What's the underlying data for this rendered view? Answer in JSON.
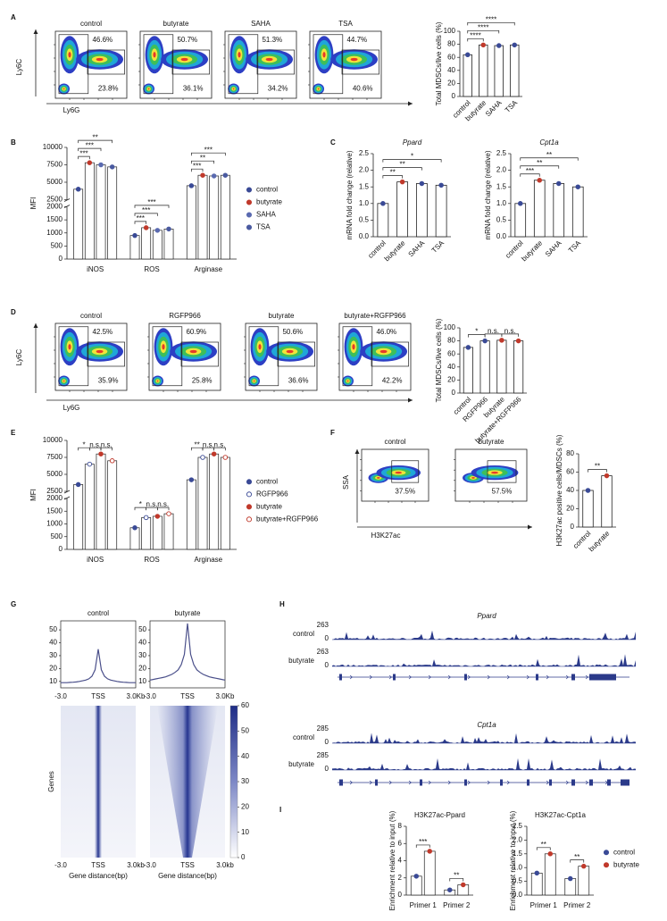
{
  "panel_labels": [
    "A",
    "B",
    "C",
    "D",
    "E",
    "F",
    "G",
    "H",
    "I"
  ],
  "flow": {
    "a": {
      "y_axis": "Ly6C",
      "x_axis": "Ly6G",
      "plots": [
        {
          "title": "control",
          "gates": [
            "46.6%",
            "23.8%"
          ]
        },
        {
          "title": "butyrate",
          "gates": [
            "50.7%",
            "36.1%"
          ]
        },
        {
          "title": "SAHA",
          "gates": [
            "51.3%",
            "34.2%"
          ]
        },
        {
          "title": "TSA",
          "gates": [
            "44.7%",
            "40.6%"
          ]
        }
      ]
    },
    "d": {
      "y_axis": "Ly6C",
      "x_axis": "Ly6G",
      "plots": [
        {
          "title": "control",
          "gates": [
            "42.5%",
            "35.9%"
          ]
        },
        {
          "title": "RGFP966",
          "gates": [
            "60.9%",
            "25.8%"
          ]
        },
        {
          "title": "butyrate",
          "gates": [
            "50.6%",
            "36.6%"
          ]
        },
        {
          "title": "butyrate+RGFP966",
          "gates": [
            "46.0%",
            "42.2%"
          ]
        }
      ]
    },
    "f": {
      "y_axis": "SSA",
      "x_axis": "H3K27ac",
      "plots": [
        {
          "title": "control",
          "gates": [
            "37.5%"
          ]
        },
        {
          "title": "butyrate",
          "gates": [
            "57.5%"
          ]
        }
      ]
    }
  },
  "chart_data": [
    {
      "type": "bar",
      "y_label": "Total MDSCs/live cells (%)",
      "categories": [
        "control",
        "butyrate",
        "SAHA",
        "TSA"
      ],
      "values": [
        64,
        79,
        78,
        79
      ],
      "colors": [
        "#3a4a96",
        "#c0392b",
        "#3a4a96",
        "#3a4a96"
      ],
      "ylim": [
        0,
        100
      ],
      "yticks": [
        0,
        20,
        40,
        60,
        80,
        100
      ],
      "significance": [
        {
          "pair": [
            0,
            1
          ],
          "label": "****"
        },
        {
          "pair": [
            0,
            2
          ],
          "label": "****"
        },
        {
          "pair": [
            0,
            3
          ],
          "label": "****"
        }
      ]
    },
    {
      "type": "bar",
      "y_label": "MFI",
      "categories": [
        "iNOS",
        "ROS",
        "Arginase"
      ],
      "series": [
        {
          "name": "control",
          "color": "#3a4a96",
          "values": [
            4000,
            900,
            4500
          ]
        },
        {
          "name": "butyrate",
          "color": "#c0392b",
          "values": [
            7800,
            1200,
            6000
          ]
        },
        {
          "name": "SAHA",
          "color": "#5a6ab0",
          "values": [
            7500,
            1100,
            5900
          ]
        },
        {
          "name": "TSA",
          "color": "#4a5aa0",
          "values": [
            7200,
            1150,
            6000
          ]
        }
      ],
      "ylim": [
        0,
        10000
      ],
      "ybreak": [
        2000,
        2500
      ],
      "yticks": [
        0,
        500,
        1000,
        1500,
        2000,
        2500,
        5000,
        7500,
        10000
      ],
      "legend": "right",
      "significance": [
        {
          "category": 0,
          "pair": [
            0,
            1
          ],
          "label": "***"
        },
        {
          "category": 0,
          "pair": [
            0,
            2
          ],
          "label": "***"
        },
        {
          "category": 0,
          "pair": [
            0,
            3
          ],
          "label": "**"
        },
        {
          "category": 1,
          "pair": [
            0,
            1
          ],
          "label": "***"
        },
        {
          "category": 1,
          "pair": [
            0,
            2
          ],
          "label": "***"
        },
        {
          "category": 1,
          "pair": [
            0,
            3
          ],
          "label": "***"
        },
        {
          "category": 2,
          "pair": [
            0,
            1
          ],
          "label": "***"
        },
        {
          "category": 2,
          "pair": [
            0,
            2
          ],
          "label": "**"
        },
        {
          "category": 2,
          "pair": [
            0,
            3
          ],
          "label": "***"
        }
      ]
    },
    {
      "type": "bar",
      "title": "Ppard",
      "y_label": "mRNA fold change (relative)",
      "categories": [
        "control",
        "butyrate",
        "SAHA",
        "TSA"
      ],
      "values": [
        1.0,
        1.65,
        1.6,
        1.55
      ],
      "colors": [
        "#3a4a96",
        "#c0392b",
        "#3a4a96",
        "#3a4a96"
      ],
      "ylim": [
        0,
        2.5
      ],
      "yticks": [
        {
          "value": 0,
          "label": "0.0"
        },
        0.5,
        {
          "value": 1,
          "label": "1.0"
        },
        1.5,
        {
          "value": 2,
          "label": "2.0"
        },
        2.5
      ],
      "significance": [
        {
          "pair": [
            0,
            1
          ],
          "label": "**"
        },
        {
          "pair": [
            0,
            2
          ],
          "label": "**"
        },
        {
          "pair": [
            0,
            3
          ],
          "label": "*"
        }
      ]
    },
    {
      "type": "bar",
      "title": "Cpt1a",
      "y_label": "mRNA fold change (relative)",
      "categories": [
        "control",
        "butyrate",
        "SAHA",
        "TSA"
      ],
      "values": [
        1.0,
        1.7,
        1.6,
        1.5
      ],
      "colors": [
        "#3a4a96",
        "#c0392b",
        "#3a4a96",
        "#3a4a96"
      ],
      "ylim": [
        0,
        2.5
      ],
      "yticks": [
        {
          "value": 0,
          "label": "0.0"
        },
        0.5,
        {
          "value": 1,
          "label": "1.0"
        },
        1.5,
        {
          "value": 2,
          "label": "2.0"
        },
        2.5
      ],
      "significance": [
        {
          "pair": [
            0,
            1
          ],
          "label": "***"
        },
        {
          "pair": [
            0,
            2
          ],
          "label": "**"
        },
        {
          "pair": [
            0,
            3
          ],
          "label": "**"
        }
      ]
    },
    {
      "type": "bar",
      "y_label": "Total MDSCs/live cells (%)",
      "categories": [
        "control",
        "RGFP966",
        "butyrate",
        "butyrate+RGFP966"
      ],
      "values": [
        70,
        80,
        81,
        80
      ],
      "colors": [
        "#3a4a96",
        "#3a4a96",
        "#c0392b",
        "#c0392b"
      ],
      "ylim": [
        0,
        100
      ],
      "yticks": [
        0,
        20,
        40,
        60,
        80,
        100
      ],
      "significance": [
        {
          "pair": [
            0,
            1
          ],
          "label": "*"
        },
        {
          "pair": [
            1,
            2
          ],
          "label": "n.s."
        },
        {
          "pair": [
            2,
            3
          ],
          "label": "n.s."
        }
      ]
    },
    {
      "type": "bar",
      "y_label": "MFI",
      "categories": [
        "iNOS",
        "ROS",
        "Arginase"
      ],
      "series": [
        {
          "name": "control",
          "color": "#3a4a96",
          "values": [
            3500,
            850,
            4200
          ]
        },
        {
          "name": "RGFP966",
          "color": "#3a4a96",
          "hollow": true,
          "values": [
            6500,
            1250,
            7500
          ]
        },
        {
          "name": "butyrate",
          "color": "#c0392b",
          "values": [
            8000,
            1300,
            8000
          ]
        },
        {
          "name": "butyrate+RGFP966",
          "color": "#c0392b",
          "hollow": true,
          "values": [
            7000,
            1400,
            7500
          ]
        }
      ],
      "ylim": [
        0,
        10000
      ],
      "ybreak": [
        2000,
        2500
      ],
      "yticks": [
        0,
        500,
        1000,
        1500,
        2000,
        2500,
        5000,
        7500,
        10000
      ],
      "legend": "right",
      "significance": [
        {
          "category": 0,
          "pair": [
            0,
            1
          ],
          "label": "*"
        },
        {
          "category": 0,
          "pair": [
            1,
            2
          ],
          "label": "n.s."
        },
        {
          "category": 0,
          "pair": [
            2,
            3
          ],
          "label": "n.s."
        },
        {
          "category": 1,
          "pair": [
            0,
            1
          ],
          "label": "*"
        },
        {
          "category": 1,
          "pair": [
            1,
            2
          ],
          "label": "n.s."
        },
        {
          "category": 1,
          "pair": [
            2,
            3
          ],
          "label": "n.s."
        },
        {
          "category": 2,
          "pair": [
            0,
            1
          ],
          "label": "**"
        },
        {
          "category": 2,
          "pair": [
            1,
            2
          ],
          "label": "n.s."
        },
        {
          "category": 2,
          "pair": [
            2,
            3
          ],
          "label": "n.s."
        }
      ]
    },
    {
      "type": "bar",
      "y_label": "H3K27ac positive cells/MDSCs (%)",
      "categories": [
        "control",
        "butyrate"
      ],
      "values": [
        40,
        56
      ],
      "colors": [
        "#3a4a96",
        "#c0392b"
      ],
      "ylim": [
        0,
        80
      ],
      "yticks": [
        0,
        20,
        40,
        60,
        80
      ],
      "significance": [
        {
          "pair": [
            0,
            1
          ],
          "label": "**"
        }
      ]
    },
    {
      "type": "line",
      "title": "control",
      "color": "#4a4f8a",
      "values": [
        9,
        9,
        9,
        9.2,
        9.4,
        9.6,
        10,
        10.5,
        11,
        12,
        14,
        19,
        35,
        19,
        14,
        12,
        11,
        10.5,
        10,
        9.6,
        9.4,
        9.2,
        9,
        9,
        9
      ],
      "ylim": [
        5,
        57
      ],
      "yticks": [
        10,
        20,
        30,
        40,
        50
      ],
      "x_labels": [
        "-3.0",
        "TSS",
        "3.0Kb"
      ]
    },
    {
      "type": "line",
      "title": "butyrate",
      "color": "#4a4f8a",
      "values": [
        11,
        11.5,
        12,
        12.5,
        13,
        13.5,
        14.5,
        15.5,
        17,
        19,
        23,
        31,
        55,
        31,
        23,
        19,
        17,
        15.5,
        14.5,
        13.5,
        13,
        12.5,
        12,
        11.5,
        11
      ],
      "ylim": [
        5,
        57
      ],
      "yticks": [
        10,
        20,
        30,
        40,
        50
      ],
      "x_labels": [
        "-3.0",
        "TSS",
        "3.0Kb"
      ]
    },
    {
      "type": "bar",
      "title": "H3K27ac-Ppard",
      "y_label": "Enrichment relative to input (%)",
      "categories": [
        "Primer 1",
        "Primer 2"
      ],
      "series": [
        {
          "name": "control",
          "color": "#3a4a96",
          "values": [
            2.2,
            0.6
          ]
        },
        {
          "name": "butyrate",
          "color": "#c0392b",
          "values": [
            5.1,
            1.2
          ]
        }
      ],
      "ylim": [
        0,
        8
      ],
      "yticks": [
        0,
        2,
        4,
        6,
        8
      ],
      "significance": [
        {
          "category": 0,
          "pair": [
            0,
            1
          ],
          "label": "***"
        },
        {
          "category": 1,
          "pair": [
            0,
            1
          ],
          "label": "**"
        }
      ]
    },
    {
      "type": "bar",
      "title": "H3K27ac-Cpt1a",
      "y_label": "Enrichment relative to input (%)",
      "categories": [
        "Primer 1",
        "Primer 2"
      ],
      "series": [
        {
          "name": "control",
          "color": "#3a4a96",
          "values": [
            0.8,
            0.6
          ]
        },
        {
          "name": "butyrate",
          "color": "#c0392b",
          "values": [
            1.5,
            1.05
          ]
        }
      ],
      "ylim": [
        0,
        2.5
      ],
      "yticks": [
        {
          "value": 0,
          "label": "0.0"
        },
        0.5,
        {
          "value": 1,
          "label": "1.0"
        },
        1.5,
        {
          "value": 2,
          "label": "2.0"
        },
        2.5
      ],
      "legend": "right",
      "significance": [
        {
          "category": 0,
          "pair": [
            0,
            1
          ],
          "label": "**"
        },
        {
          "category": 1,
          "pair": [
            0,
            1
          ],
          "label": "**"
        }
      ]
    }
  ],
  "heatmap": {
    "y_label": "Genes",
    "x_label": "Gene distance(bp)",
    "x_labels": [
      "-3.0",
      "TSS",
      "3.0kb"
    ],
    "colorbar": {
      "lim": [
        0,
        60
      ],
      "ticks": [
        0,
        10,
        20,
        30,
        40,
        50,
        60
      ]
    }
  },
  "tracks": [
    {
      "gene": "Ppard",
      "rows": [
        {
          "name": "control",
          "max": 263,
          "min": 0
        },
        {
          "name": "butyrate",
          "max": 263,
          "min": 0
        }
      ]
    },
    {
      "gene": "Cpt1a",
      "rows": [
        {
          "name": "control",
          "max": 285,
          "min": 0
        },
        {
          "name": "butyrate",
          "max": 285,
          "min": 0
        }
      ]
    }
  ]
}
